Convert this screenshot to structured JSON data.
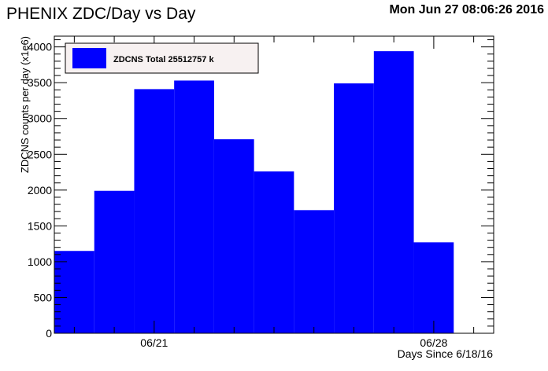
{
  "chart_data": {
    "type": "bar",
    "title": "PHENIX ZDC/Day vs Day",
    "timestamp": "Mon Jun 27 08:06:26 2016",
    "xlabel": "Days Since 6/18/16",
    "ylabel": "ZDCNS counts per day (x1e6)",
    "x_tick_labels": [
      "06/21",
      "06/28"
    ],
    "y_ticks": [
      "0",
      "500",
      "1000",
      "1500",
      "2000",
      "2500",
      "3000",
      "3500",
      "4000"
    ],
    "ylim": [
      0,
      4150
    ],
    "bar_color": "#0000ff",
    "legend_position": "top-left",
    "legend": "ZDCNS Total 25512757 k",
    "bins_start_day": 1.5,
    "bin_width": 1,
    "xlim": [
      1.5,
      12.5
    ],
    "values": [
      1150,
      1990,
      3410,
      3530,
      2710,
      2260,
      1720,
      3490,
      3940,
      1270
    ]
  }
}
